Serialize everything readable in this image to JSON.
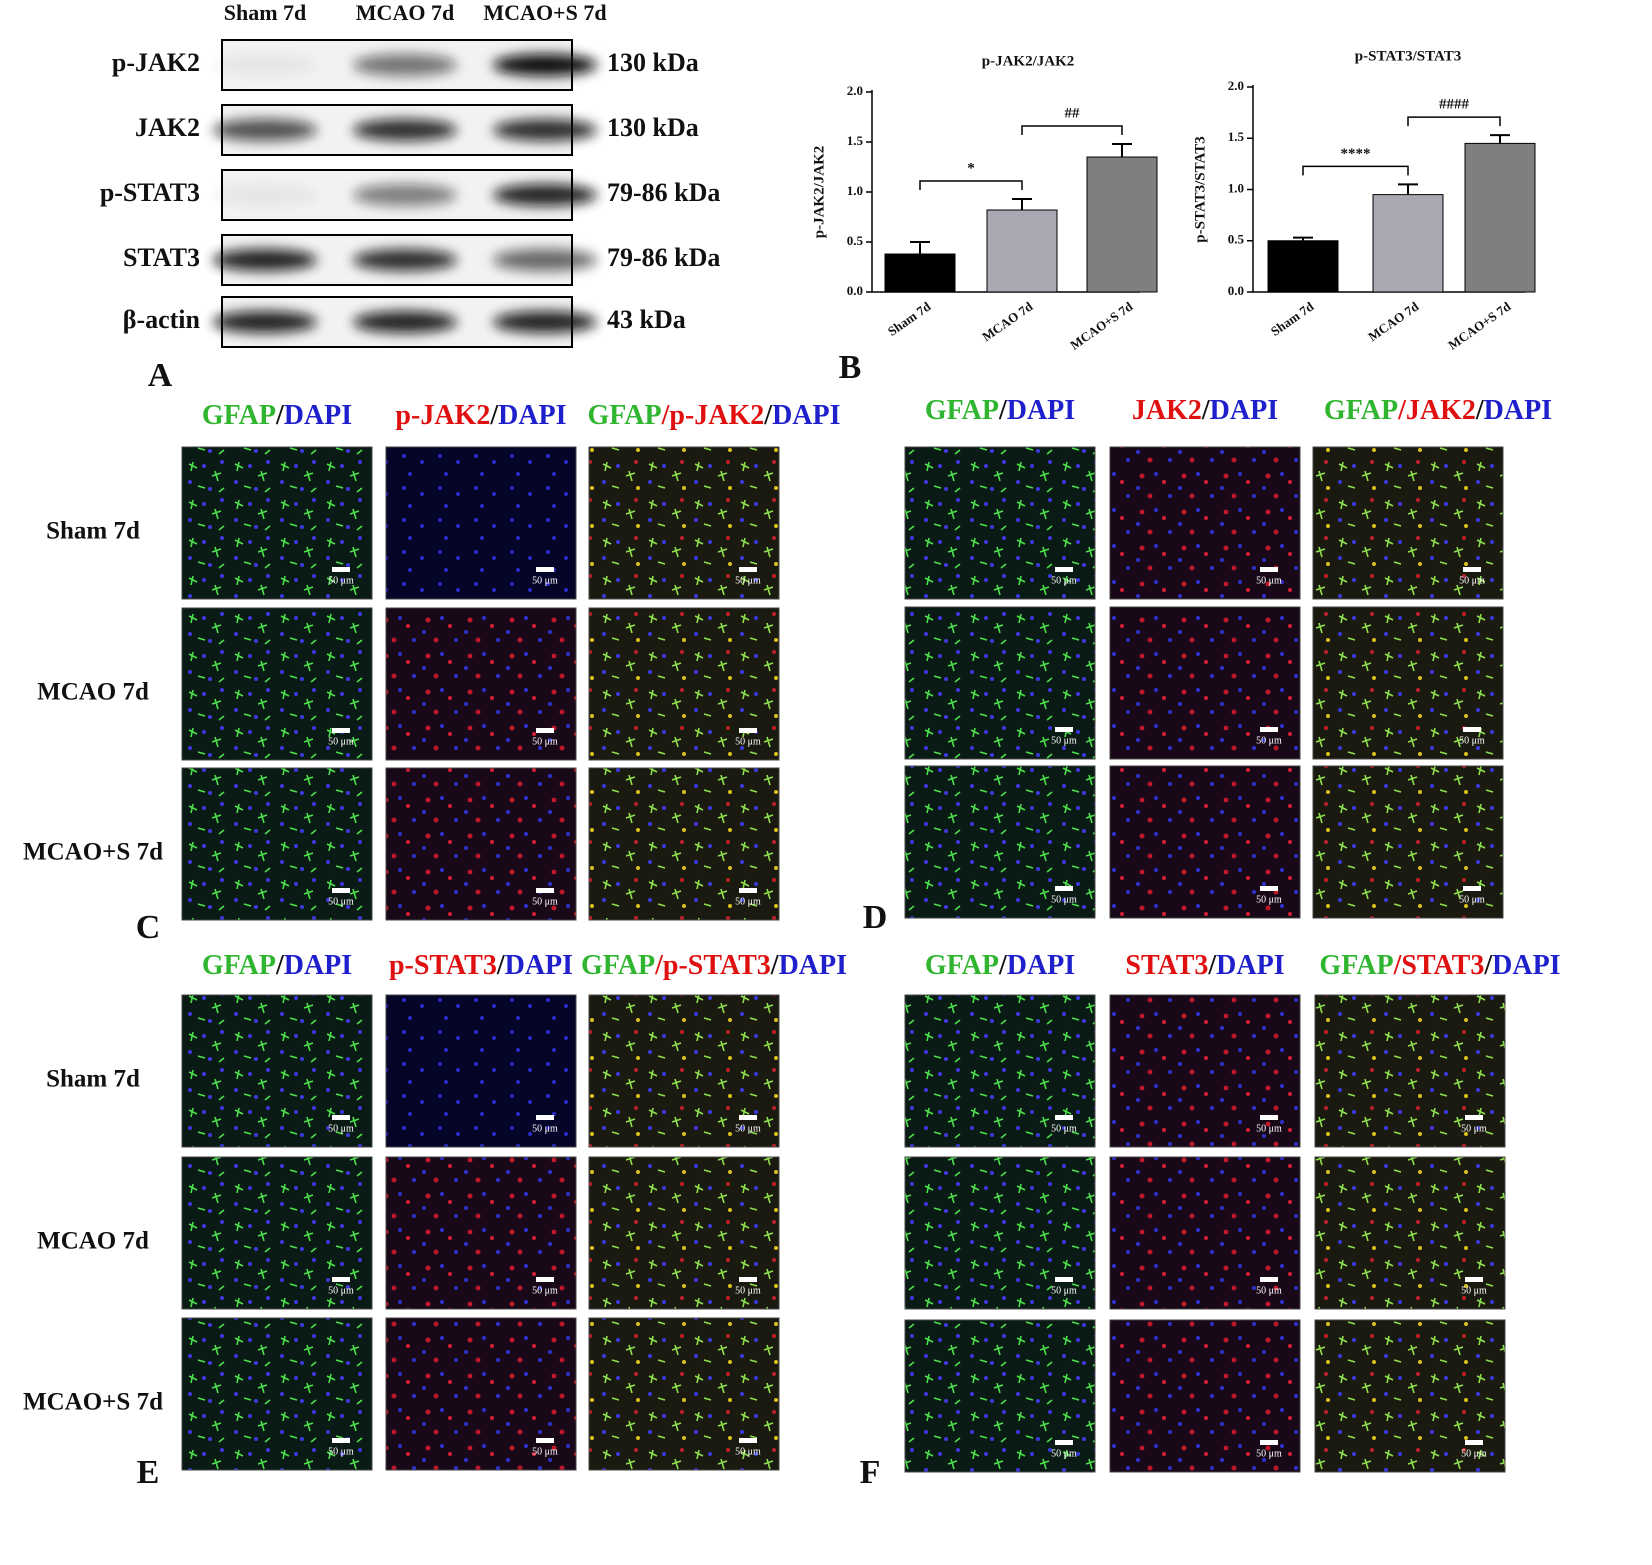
{
  "blot": {
    "label": "A",
    "lanes": [
      "Sham 7d",
      "MCAO 7d",
      "MCAO+S 7d"
    ],
    "rows": [
      {
        "protein": "p-JAK2",
        "size": "130 kDa"
      },
      {
        "protein": "JAK2",
        "size": "130 kDa"
      },
      {
        "protein": "p-STAT3",
        "size": "79-86 kDa"
      },
      {
        "protein": "STAT3",
        "size": "79-86 kDa"
      },
      {
        "protein": "β-actin",
        "size": "43 kDa"
      }
    ]
  },
  "charts_label": "B",
  "chart_data": [
    {
      "type": "bar",
      "title": "p-JAK2/JAK2",
      "y_label": "p-JAK2/JAK2",
      "categories": [
        "Sham 7d",
        "MCAO 7d",
        "MCAO+S 7d"
      ],
      "values": [
        0.38,
        0.82,
        1.35
      ],
      "errors": [
        0.12,
        0.11,
        0.13
      ],
      "colors": [
        "#000000",
        "#a9a9b3",
        "#7f7f7f"
      ],
      "ylim": [
        0,
        2.0
      ],
      "yticks": [
        {
          "value": 0,
          "label": "0.0"
        },
        {
          "value": 0.5,
          "label": "0.5"
        },
        {
          "value": 1,
          "label": "1.0"
        },
        {
          "value": 1.5,
          "label": "1.5"
        },
        {
          "value": 2,
          "label": "2.0"
        }
      ],
      "annotations": [
        {
          "text": "*",
          "between": [
            "Sham 7d",
            "MCAO 7d"
          ]
        },
        {
          "text": "##",
          "between": [
            "MCAO 7d",
            "MCAO+S 7d"
          ]
        }
      ]
    },
    {
      "type": "bar",
      "title": "p-STAT3/STAT3",
      "y_label": "p-STAT3/STAT3",
      "categories": [
        "Sham 7d",
        "MCAO 7d",
        "MCAO+S 7d"
      ],
      "values": [
        0.5,
        0.95,
        1.45
      ],
      "errors": [
        0.03,
        0.1,
        0.08
      ],
      "colors": [
        "#000000",
        "#a9a9b3",
        "#7f7f7f"
      ],
      "ylim": [
        0,
        2.0
      ],
      "yticks": [
        {
          "value": 0,
          "label": "0.0"
        },
        {
          "value": 0.5,
          "label": "0.5"
        },
        {
          "value": 1,
          "label": "1.0"
        },
        {
          "value": 1.5,
          "label": "1.5"
        },
        {
          "value": 2,
          "label": "2.0"
        }
      ],
      "annotations": [
        {
          "text": "****",
          "between": [
            "Sham 7d",
            "MCAO 7d"
          ]
        },
        {
          "text": "####",
          "between": [
            "MCAO 7d",
            "MCAO+S 7d"
          ]
        }
      ]
    }
  ],
  "scale_bar": "50 μm",
  "if_panels": [
    {
      "label": "C",
      "rows": [
        "Sham 7d",
        "MCAO 7d",
        "MCAO+S 7d"
      ],
      "header": [
        [
          {
            "text": "GFAP",
            "color": "#2fb52f"
          },
          {
            "text": "/",
            "color": "#111111"
          },
          {
            "text": "DAPI",
            "color": "#1f1fcc"
          }
        ],
        [
          {
            "text": "p-JAK2",
            "color": "#e01010"
          },
          {
            "text": "/",
            "color": "#111111"
          },
          {
            "text": "DAPI",
            "color": "#1f1fcc"
          }
        ],
        [
          {
            "text": "GFAP",
            "color": "#2fb52f"
          },
          {
            "text": "/p-JAK2",
            "color": "#e01010"
          },
          {
            "text": "/",
            "color": "#111111"
          },
          {
            "text": "DAPI",
            "color": "#1f1fcc"
          }
        ]
      ]
    },
    {
      "label": "D",
      "header": [
        [
          {
            "text": "GFAP",
            "color": "#2fb52f"
          },
          {
            "text": "/",
            "color": "#111111"
          },
          {
            "text": "DAPI",
            "color": "#1f1fcc"
          }
        ],
        [
          {
            "text": "JAK2",
            "color": "#e01010"
          },
          {
            "text": "/",
            "color": "#111111"
          },
          {
            "text": "DAPI",
            "color": "#1f1fcc"
          }
        ],
        [
          {
            "text": "GFAP",
            "color": "#2fb52f"
          },
          {
            "text": "/JAK2",
            "color": "#e01010"
          },
          {
            "text": "/",
            "color": "#111111"
          },
          {
            "text": "DAPI",
            "color": "#1f1fcc"
          }
        ]
      ]
    },
    {
      "label": "E",
      "rows": [
        "Sham 7d",
        "MCAO 7d",
        "MCAO+S 7d"
      ],
      "header": [
        [
          {
            "text": "GFAP",
            "color": "#2fb52f"
          },
          {
            "text": "/",
            "color": "#111111"
          },
          {
            "text": "DAPI",
            "color": "#1f1fcc"
          }
        ],
        [
          {
            "text": "p-STAT3",
            "color": "#e01010"
          },
          {
            "text": "/",
            "color": "#111111"
          },
          {
            "text": "DAPI",
            "color": "#1f1fcc"
          }
        ],
        [
          {
            "text": "GFAP",
            "color": "#2fb52f"
          },
          {
            "text": "/p-STAT3",
            "color": "#e01010"
          },
          {
            "text": "/",
            "color": "#111111"
          },
          {
            "text": "DAPI",
            "color": "#1f1fcc"
          }
        ]
      ]
    },
    {
      "label": "F",
      "header": [
        [
          {
            "text": "GFAP",
            "color": "#2fb52f"
          },
          {
            "text": "/",
            "color": "#111111"
          },
          {
            "text": "DAPI",
            "color": "#1f1fcc"
          }
        ],
        [
          {
            "text": "STAT3",
            "color": "#e01010"
          },
          {
            "text": "/",
            "color": "#111111"
          },
          {
            "text": "DAPI",
            "color": "#1f1fcc"
          }
        ],
        [
          {
            "text": "GFAP",
            "color": "#2fb52f"
          },
          {
            "text": "/STAT3",
            "color": "#e01010"
          },
          {
            "text": "/",
            "color": "#111111"
          },
          {
            "text": "DAPI",
            "color": "#1f1fcc"
          }
        ]
      ]
    }
  ]
}
